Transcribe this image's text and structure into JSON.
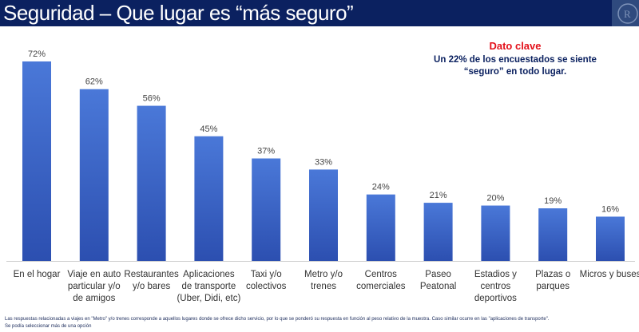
{
  "header": {
    "title": "Seguridad – Que lugar es “más seguro”"
  },
  "key_fact": {
    "title": "Dato clave",
    "text": "Un 22% de los encuestados se siente “seguro” en todo lugar."
  },
  "chart_data": {
    "type": "bar",
    "categories": [
      "En el hogar",
      "Viaje en auto particular y/o de amigos",
      "Restaurantes y/o bares",
      "Aplicaciones de transporte (Uber, Didi, etc)",
      "Taxi y/o colectivos",
      "Metro y/o trenes",
      "Centros comerciales",
      "Paseo Peatonal",
      "Estadios y centros deportivos",
      "Plazas o parques",
      "Micros y buses"
    ],
    "values": [
      72,
      62,
      56,
      45,
      37,
      33,
      24,
      21,
      20,
      19,
      16
    ],
    "labels": [
      "72%",
      "62%",
      "56%",
      "45%",
      "37%",
      "33%",
      "24%",
      "21%",
      "20%",
      "19%",
      "16%"
    ],
    "ylim": [
      0,
      72
    ],
    "bar_color_top": "#4a78d8",
    "bar_color_bottom": "#2c4fb0",
    "grid": false
  },
  "footnotes": [
    "Las respuestas relacionadas a viajes en \"Metro\" y/o trenes corresponde a aquellos lugares donde se ofrece dicho servicio, por lo que se ponderó su respuesta en función al peso relativo de la muestra. Caso similar ocurre en las \"aplicaciones de transporte\".",
    "Se podía seleccionar más de una opción"
  ]
}
